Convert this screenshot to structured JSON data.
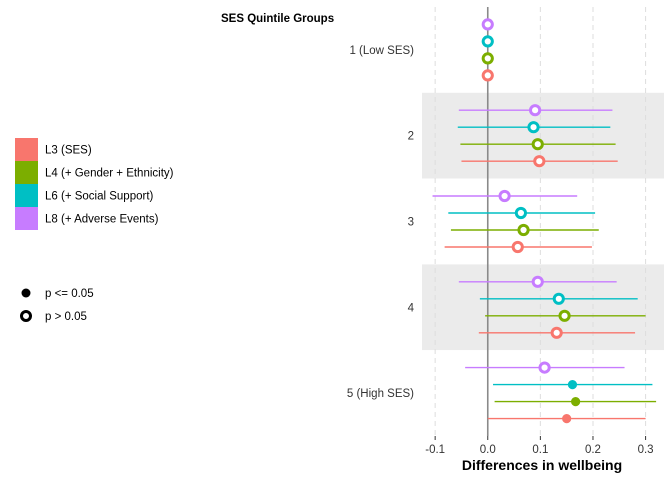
{
  "chart_data": {
    "type": "forest",
    "title": "SES Quintile Groups",
    "xlabel": "Differences in wellbeing",
    "xlim": [
      -0.125,
      0.335
    ],
    "xticks": [
      -0.1,
      0.0,
      0.1,
      0.2,
      0.3
    ],
    "xtick_labels": [
      "-0.1",
      "0.0",
      "0.1",
      "0.2",
      "0.3"
    ],
    "reference_line": 0,
    "grid": true,
    "legend_position": "left",
    "categories": [
      "1 (Low SES)",
      "2",
      "3",
      "4",
      "5 (High SES)"
    ],
    "series": [
      {
        "name": "L3 (SES)",
        "color": "#F8766D",
        "estimates": [
          0.0,
          0.098,
          0.057,
          0.131,
          0.15
        ],
        "lower": [
          0.0,
          -0.05,
          -0.082,
          -0.017,
          0.0
        ],
        "upper": [
          0.0,
          0.247,
          0.198,
          0.28,
          0.3
        ],
        "significant": [
          false,
          false,
          false,
          false,
          true
        ]
      },
      {
        "name": "L4 (+ Gender + Ethnicity)",
        "color": "#7CAE00",
        "estimates": [
          0.0,
          0.095,
          0.068,
          0.146,
          0.167
        ],
        "lower": [
          0.0,
          -0.052,
          -0.07,
          -0.005,
          0.013
        ],
        "upper": [
          0.0,
          0.243,
          0.211,
          0.3,
          0.32
        ],
        "significant": [
          false,
          false,
          false,
          false,
          true
        ]
      },
      {
        "name": "L6 (+ Social Support)",
        "color": "#00BFC4",
        "estimates": [
          0.0,
          0.087,
          0.063,
          0.135,
          0.161
        ],
        "lower": [
          0.0,
          -0.057,
          -0.075,
          -0.015,
          0.01
        ],
        "upper": [
          0.0,
          0.233,
          0.204,
          0.285,
          0.313
        ],
        "significant": [
          false,
          false,
          false,
          false,
          true
        ]
      },
      {
        "name": "L8 (+ Adverse Events)",
        "color": "#C77CFF",
        "estimates": [
          0.0,
          0.09,
          0.032,
          0.095,
          0.108
        ],
        "lower": [
          0.0,
          -0.055,
          -0.105,
          -0.055,
          -0.043
        ],
        "upper": [
          0.0,
          0.237,
          0.17,
          0.245,
          0.26
        ],
        "significant": [
          false,
          false,
          false,
          false,
          false
        ]
      }
    ],
    "significance_legend": [
      {
        "label": "p <= 0.05",
        "filled": true
      },
      {
        "label": "p > 0.05",
        "filled": false
      }
    ]
  }
}
